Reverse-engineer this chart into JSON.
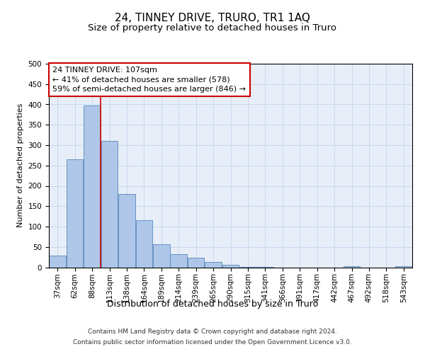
{
  "title": "24, TINNEY DRIVE, TRURO, TR1 1AQ",
  "subtitle": "Size of property relative to detached houses in Truro",
  "xlabel": "Distribution of detached houses by size in Truro",
  "ylabel": "Number of detached properties",
  "categories": [
    "37sqm",
    "62sqm",
    "88sqm",
    "113sqm",
    "138sqm",
    "164sqm",
    "189sqm",
    "214sqm",
    "239sqm",
    "265sqm",
    "290sqm",
    "315sqm",
    "341sqm",
    "366sqm",
    "391sqm",
    "417sqm",
    "442sqm",
    "467sqm",
    "492sqm",
    "518sqm",
    "543sqm"
  ],
  "values": [
    28,
    265,
    397,
    310,
    180,
    115,
    57,
    32,
    23,
    13,
    6,
    1,
    1,
    0,
    0,
    0,
    0,
    2,
    0,
    0,
    2
  ],
  "bar_color": "#aec6e8",
  "bar_edge_color": "#5588bb",
  "grid_color": "#c8d8ee",
  "background_color": "#e8eef8",
  "vline_x": 2.5,
  "vline_color": "#cc0000",
  "annotation_text": "24 TINNEY DRIVE: 107sqm\n← 41% of detached houses are smaller (578)\n59% of semi-detached houses are larger (846) →",
  "annotation_box_color": "#cc0000",
  "ylim": [
    0,
    500
  ],
  "yticks": [
    0,
    50,
    100,
    150,
    200,
    250,
    300,
    350,
    400,
    450,
    500
  ],
  "footer_line1": "Contains HM Land Registry data © Crown copyright and database right 2024.",
  "footer_line2": "Contains public sector information licensed under the Open Government Licence v3.0.",
  "title_fontsize": 11,
  "subtitle_fontsize": 9.5,
  "axis_label_fontsize": 9,
  "tick_fontsize": 7.5,
  "annotation_fontsize": 8,
  "footer_fontsize": 6.5,
  "ylabel_fontsize": 8
}
